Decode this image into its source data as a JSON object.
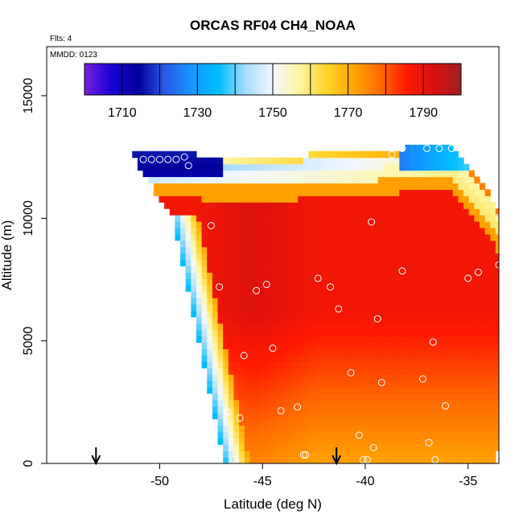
{
  "chart_data": {
    "type": "heatmap",
    "title": "ORCAS RF04 CH4_NOAA",
    "flights_note": "Flts: 4",
    "date_note": "MMDD: 0123",
    "xlabel": "Latitude (deg N)",
    "ylabel": "Altitude (m)",
    "xlim": [
      -55.5,
      -33.5
    ],
    "ylim": [
      0,
      17000
    ],
    "xticks": [
      -50,
      -45,
      -40,
      -35
    ],
    "xtick_labels": [
      "-50",
      "-45",
      "-40",
      "-35"
    ],
    "yticks": [
      0,
      5000,
      10000,
      15000
    ],
    "ytick_labels": [
      "0",
      "5000",
      "10000",
      "15000"
    ],
    "grid": false,
    "colorbar": {
      "placement": "top-inside",
      "range": [
        1700,
        1800
      ],
      "ticks": [
        1710,
        1730,
        1750,
        1770,
        1790
      ],
      "tick_labels": [
        "1710",
        "1730",
        "1750",
        "1770",
        "1790"
      ],
      "colors": [
        "#7a1fe0",
        "#1a00d6",
        "#000099",
        "#2b5be6",
        "#1496ff",
        "#00bfff",
        "#a9ddff",
        "#f3f7ff",
        "#fff5a0",
        "#ffd42a",
        "#ffa500",
        "#ff6a00",
        "#ff1a00",
        "#d61010",
        "#a02020"
      ]
    },
    "field_profile": {
      "comment_free_values_only": true,
      "latitudes": [
        -51.5,
        -48.5,
        -47.5,
        -45,
        -40,
        -36,
        -33.5
      ],
      "upper_edge_altitude": [
        12600,
        12500,
        12400,
        12400,
        12600,
        12900,
        10200
      ],
      "lower_edge_latitude_at_0m": -47,
      "lower_edge_latitude_at_10000m": -49.5
    },
    "samples": [
      {
        "lat": -50.8,
        "alt": 12400
      },
      {
        "lat": -50.4,
        "alt": 12400
      },
      {
        "lat": -50.0,
        "alt": 12400
      },
      {
        "lat": -49.6,
        "alt": 12400
      },
      {
        "lat": -49.2,
        "alt": 12400
      },
      {
        "lat": -48.8,
        "alt": 12500
      },
      {
        "lat": -48.6,
        "alt": 12150
      },
      {
        "lat": -38.7,
        "alt": 12600
      },
      {
        "lat": -38.2,
        "alt": 12850
      },
      {
        "lat": -37.0,
        "alt": 12850
      },
      {
        "lat": -36.4,
        "alt": 12850
      },
      {
        "lat": -35.8,
        "alt": 12850
      },
      {
        "lat": -35.2,
        "alt": 12850
      },
      {
        "lat": -34.9,
        "alt": 12850
      },
      {
        "lat": -39.7,
        "alt": 9850
      },
      {
        "lat": -33.5,
        "alt": 10050
      },
      {
        "lat": -47.5,
        "alt": 9700
      },
      {
        "lat": -38.2,
        "alt": 7850
      },
      {
        "lat": -34.5,
        "alt": 7800
      },
      {
        "lat": -33.5,
        "alt": 8100
      },
      {
        "lat": -35.0,
        "alt": 7550
      },
      {
        "lat": -42.3,
        "alt": 7550
      },
      {
        "lat": -41.7,
        "alt": 7200
      },
      {
        "lat": -44.8,
        "alt": 7300
      },
      {
        "lat": -45.3,
        "alt": 7050
      },
      {
        "lat": -47.1,
        "alt": 7200
      },
      {
        "lat": -41.3,
        "alt": 6300
      },
      {
        "lat": -39.4,
        "alt": 5900
      },
      {
        "lat": -36.7,
        "alt": 4950
      },
      {
        "lat": -44.5,
        "alt": 4700
      },
      {
        "lat": -45.9,
        "alt": 4400
      },
      {
        "lat": -40.7,
        "alt": 3700
      },
      {
        "lat": -37.2,
        "alt": 3450
      },
      {
        "lat": -39.2,
        "alt": 3300
      },
      {
        "lat": -43.3,
        "alt": 2300
      },
      {
        "lat": -44.1,
        "alt": 2150
      },
      {
        "lat": -46.7,
        "alt": 2100
      },
      {
        "lat": -46.1,
        "alt": 1850
      },
      {
        "lat": -36.1,
        "alt": 2350
      },
      {
        "lat": -40.3,
        "alt": 1150
      },
      {
        "lat": -36.9,
        "alt": 850
      },
      {
        "lat": -39.6,
        "alt": 650
      },
      {
        "lat": -43.0,
        "alt": 350
      },
      {
        "lat": -42.9,
        "alt": 350
      },
      {
        "lat": -46.4,
        "alt": 150
      },
      {
        "lat": -40.1,
        "alt": 150
      },
      {
        "lat": -39.9,
        "alt": 150
      },
      {
        "lat": -36.6,
        "alt": 150
      }
    ],
    "markers": [
      {
        "lat": -53.1,
        "kind": "arrow-down"
      },
      {
        "lat": -41.4,
        "kind": "arrow-down"
      }
    ]
  }
}
